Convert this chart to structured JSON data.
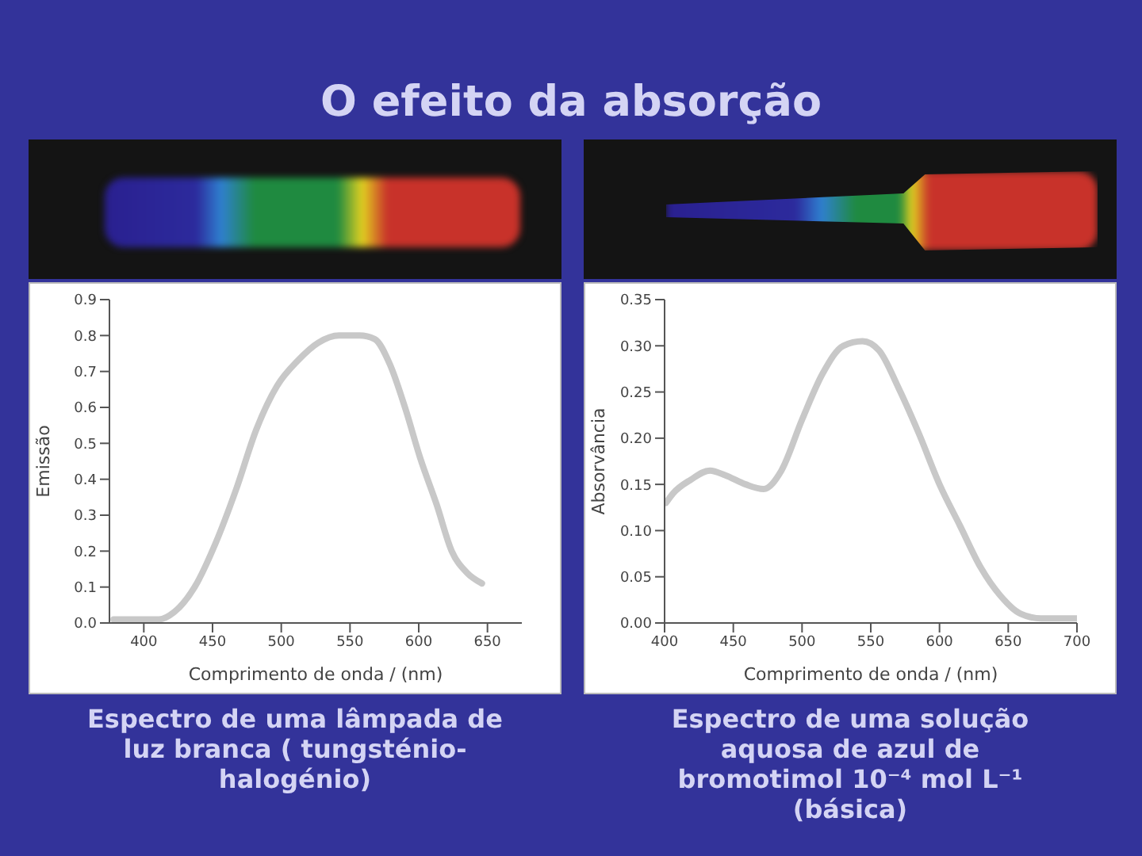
{
  "chart_data": [
    {
      "type": "line",
      "title": "O efeito da absorção",
      "xlabel": "Comprimento de onda / (nm)",
      "ylabel": "Emissão",
      "annotations": [
        "Espectro de uma lâmpada de luz branca ( tungsténio-halogénio)"
      ],
      "color": "#c8c8c8",
      "x": [
        378,
        392,
        411,
        422,
        437,
        452,
        467,
        482,
        497,
        512,
        527,
        542,
        557,
        568,
        579,
        590,
        601,
        613,
        624,
        635,
        646
      ],
      "values": [
        0.01,
        0.01,
        0.01,
        0.03,
        0.1,
        0.22,
        0.37,
        0.54,
        0.66,
        0.73,
        0.78,
        0.8,
        0.8,
        0.79,
        0.72,
        0.6,
        0.46,
        0.33,
        0.2,
        0.14,
        0.11
      ],
      "xlim": [
        375,
        675
      ],
      "xticks": [
        400,
        450,
        500,
        550,
        600,
        650
      ],
      "ylim": [
        0,
        0.9
      ],
      "yticks": [
        {
          "value": 0,
          "label": "0.0"
        },
        0.1,
        0.2,
        0.3,
        0.4,
        0.5,
        0.6,
        0.7,
        0.8,
        0.9
      ]
    },
    {
      "type": "line",
      "xlabel": "Comprimento de onda / (nm)",
      "ylabel": "Absorvância",
      "annotations": [
        "Espectro de uma solução aquosa de azul de bromotimol 10⁻⁴ mol L⁻¹ (básica)"
      ],
      "color": "#c8c8c8",
      "x": [
        401,
        406,
        419,
        433,
        444,
        459,
        472,
        485,
        500,
        515,
        530,
        544,
        556,
        570,
        585,
        600,
        615,
        630,
        644,
        659,
        674,
        700
      ],
      "values": [
        0.13,
        0.14,
        0.155,
        0.165,
        0.16,
        0.15,
        0.145,
        0.165,
        0.22,
        0.27,
        0.3,
        0.305,
        0.295,
        0.255,
        0.205,
        0.15,
        0.105,
        0.06,
        0.03,
        0.01,
        0.005,
        0.005
      ],
      "xlim": [
        400,
        700
      ],
      "xticks": [
        400,
        450,
        500,
        550,
        600,
        650,
        700
      ],
      "ylim": [
        0,
        0.35
      ],
      "yticks": [
        {
          "value": 0,
          "label": "0.00"
        },
        {
          "value": 0.05,
          "label": "0.05"
        },
        {
          "value": 0.1,
          "label": "0.10"
        },
        {
          "value": 0.15,
          "label": "0.15"
        },
        {
          "value": 0.2,
          "label": "0.20"
        },
        {
          "value": 0.25,
          "label": "0.25"
        },
        {
          "value": 0.3,
          "label": "0.30"
        },
        {
          "value": 0.35,
          "label": "0.35"
        }
      ]
    }
  ]
}
